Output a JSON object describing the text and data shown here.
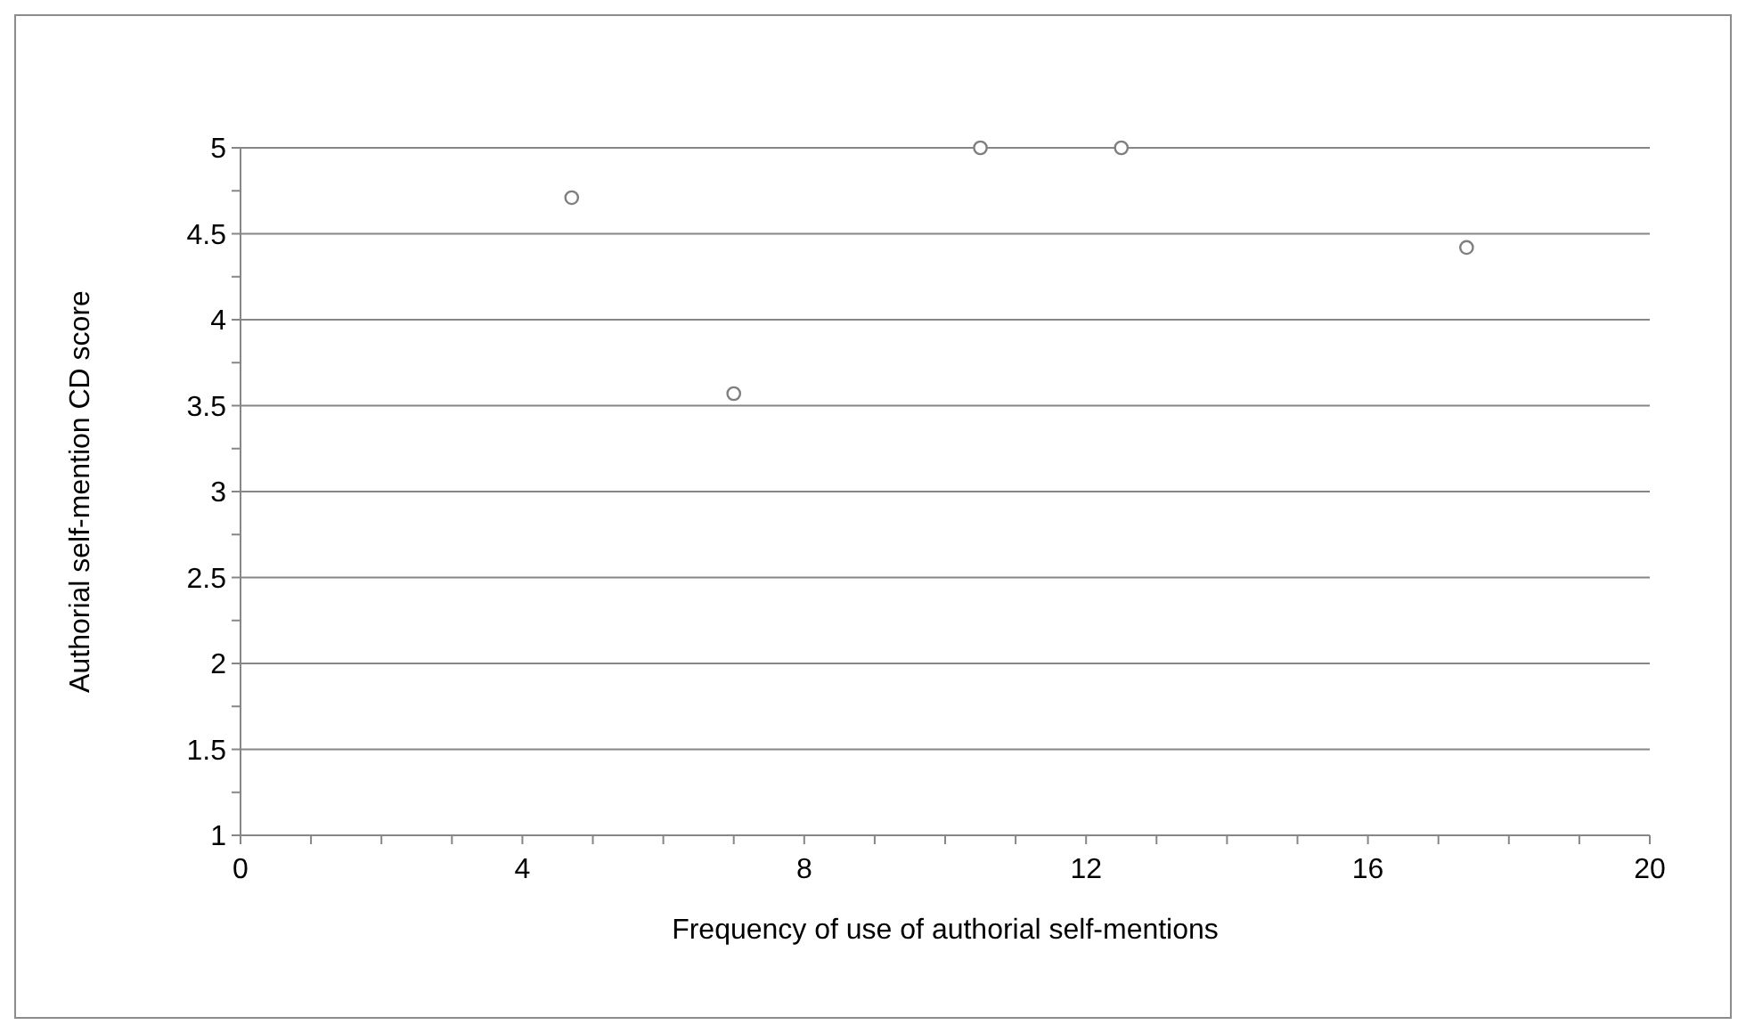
{
  "chart_data": {
    "type": "scatter",
    "xlabel": "Frequency of use of authorial self-mentions",
    "ylabel": "Authorial self-mention CD score",
    "x": [
      4.7,
      7,
      10.5,
      12.5,
      17.4
    ],
    "series": [
      {
        "color": "#7f7f7f",
        "values": [
          4.71,
          3.57,
          5,
          5,
          4.42
        ]
      }
    ],
    "marker": "circle",
    "grid": "y",
    "xlim": [
      0,
      20
    ],
    "xticks": [
      0,
      {
        "value": 1,
        "label": null
      },
      {
        "value": 2,
        "label": null
      },
      {
        "value": 3,
        "label": null
      },
      4,
      {
        "value": 5,
        "label": null
      },
      {
        "value": 6,
        "label": null
      },
      {
        "value": 7,
        "label": null
      },
      8,
      {
        "value": 9,
        "label": null
      },
      {
        "value": 10,
        "label": null
      },
      {
        "value": 11,
        "label": null
      },
      12,
      {
        "value": 13,
        "label": null
      },
      {
        "value": 14,
        "label": null
      },
      {
        "value": 15,
        "label": null
      },
      16,
      {
        "value": 17,
        "label": null
      },
      {
        "value": 18,
        "label": null
      },
      {
        "value": 19,
        "label": null
      },
      20
    ],
    "ylim": [
      1,
      5
    ],
    "yticks": [
      1,
      {
        "value": 1.25,
        "label": null
      },
      1.5,
      {
        "value": 1.75,
        "label": null
      },
      2,
      {
        "value": 2.25,
        "label": null
      },
      2.5,
      {
        "value": 2.75,
        "label": null
      },
      3,
      {
        "value": 3.25,
        "label": null
      },
      3.5,
      {
        "value": 3.75,
        "label": null
      },
      4,
      {
        "value": 4.25,
        "label": null
      },
      4.5,
      {
        "value": 4.75,
        "label": null
      },
      5
    ]
  }
}
